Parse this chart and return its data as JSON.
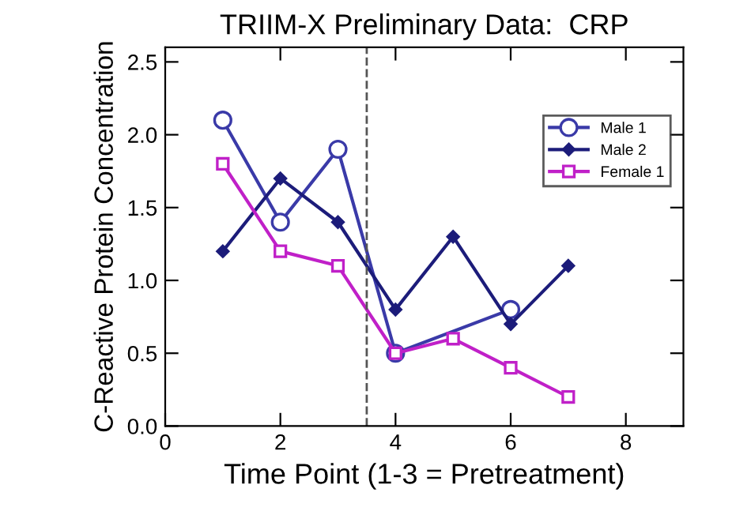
{
  "chart_data": {
    "type": "line",
    "title": "TRIIM-X Preliminary Data:  CRP",
    "xlabel": "Time Point (1-3 = Pretreatment)",
    "ylabel": "C-Reactive Protein Concentration",
    "x": [
      1,
      2,
      3,
      4,
      5,
      6,
      7
    ],
    "series": [
      {
        "name": "Male 1",
        "color": "#3a3aa8",
        "marker": "circle",
        "values": [
          2.1,
          1.4,
          1.9,
          0.5,
          null,
          0.8,
          null
        ]
      },
      {
        "name": "Male 2",
        "color": "#1c1c7a",
        "marker": "diamond",
        "values": [
          1.2,
          1.7,
          1.4,
          0.8,
          1.3,
          0.7,
          1.1
        ]
      },
      {
        "name": "Female 1",
        "color": "#c020c8",
        "marker": "square",
        "values": [
          1.8,
          1.2,
          1.1,
          0.5,
          0.6,
          0.4,
          0.2
        ]
      }
    ],
    "xlim": [
      0,
      9
    ],
    "xticks": [
      0,
      2,
      4,
      6,
      8
    ],
    "ylim": [
      0,
      2.6
    ],
    "yticks": [
      {
        "value": 0,
        "label": "0.0"
      },
      0.5,
      {
        "value": 1,
        "label": "1.0"
      },
      1.5,
      {
        "value": 2,
        "label": "2.0"
      },
      2.5
    ],
    "ref_lines": [
      {
        "axis": "x",
        "value": 3.5,
        "color": "#555555",
        "line_style": "dashed"
      }
    ],
    "grid": false,
    "legend": "top right"
  }
}
